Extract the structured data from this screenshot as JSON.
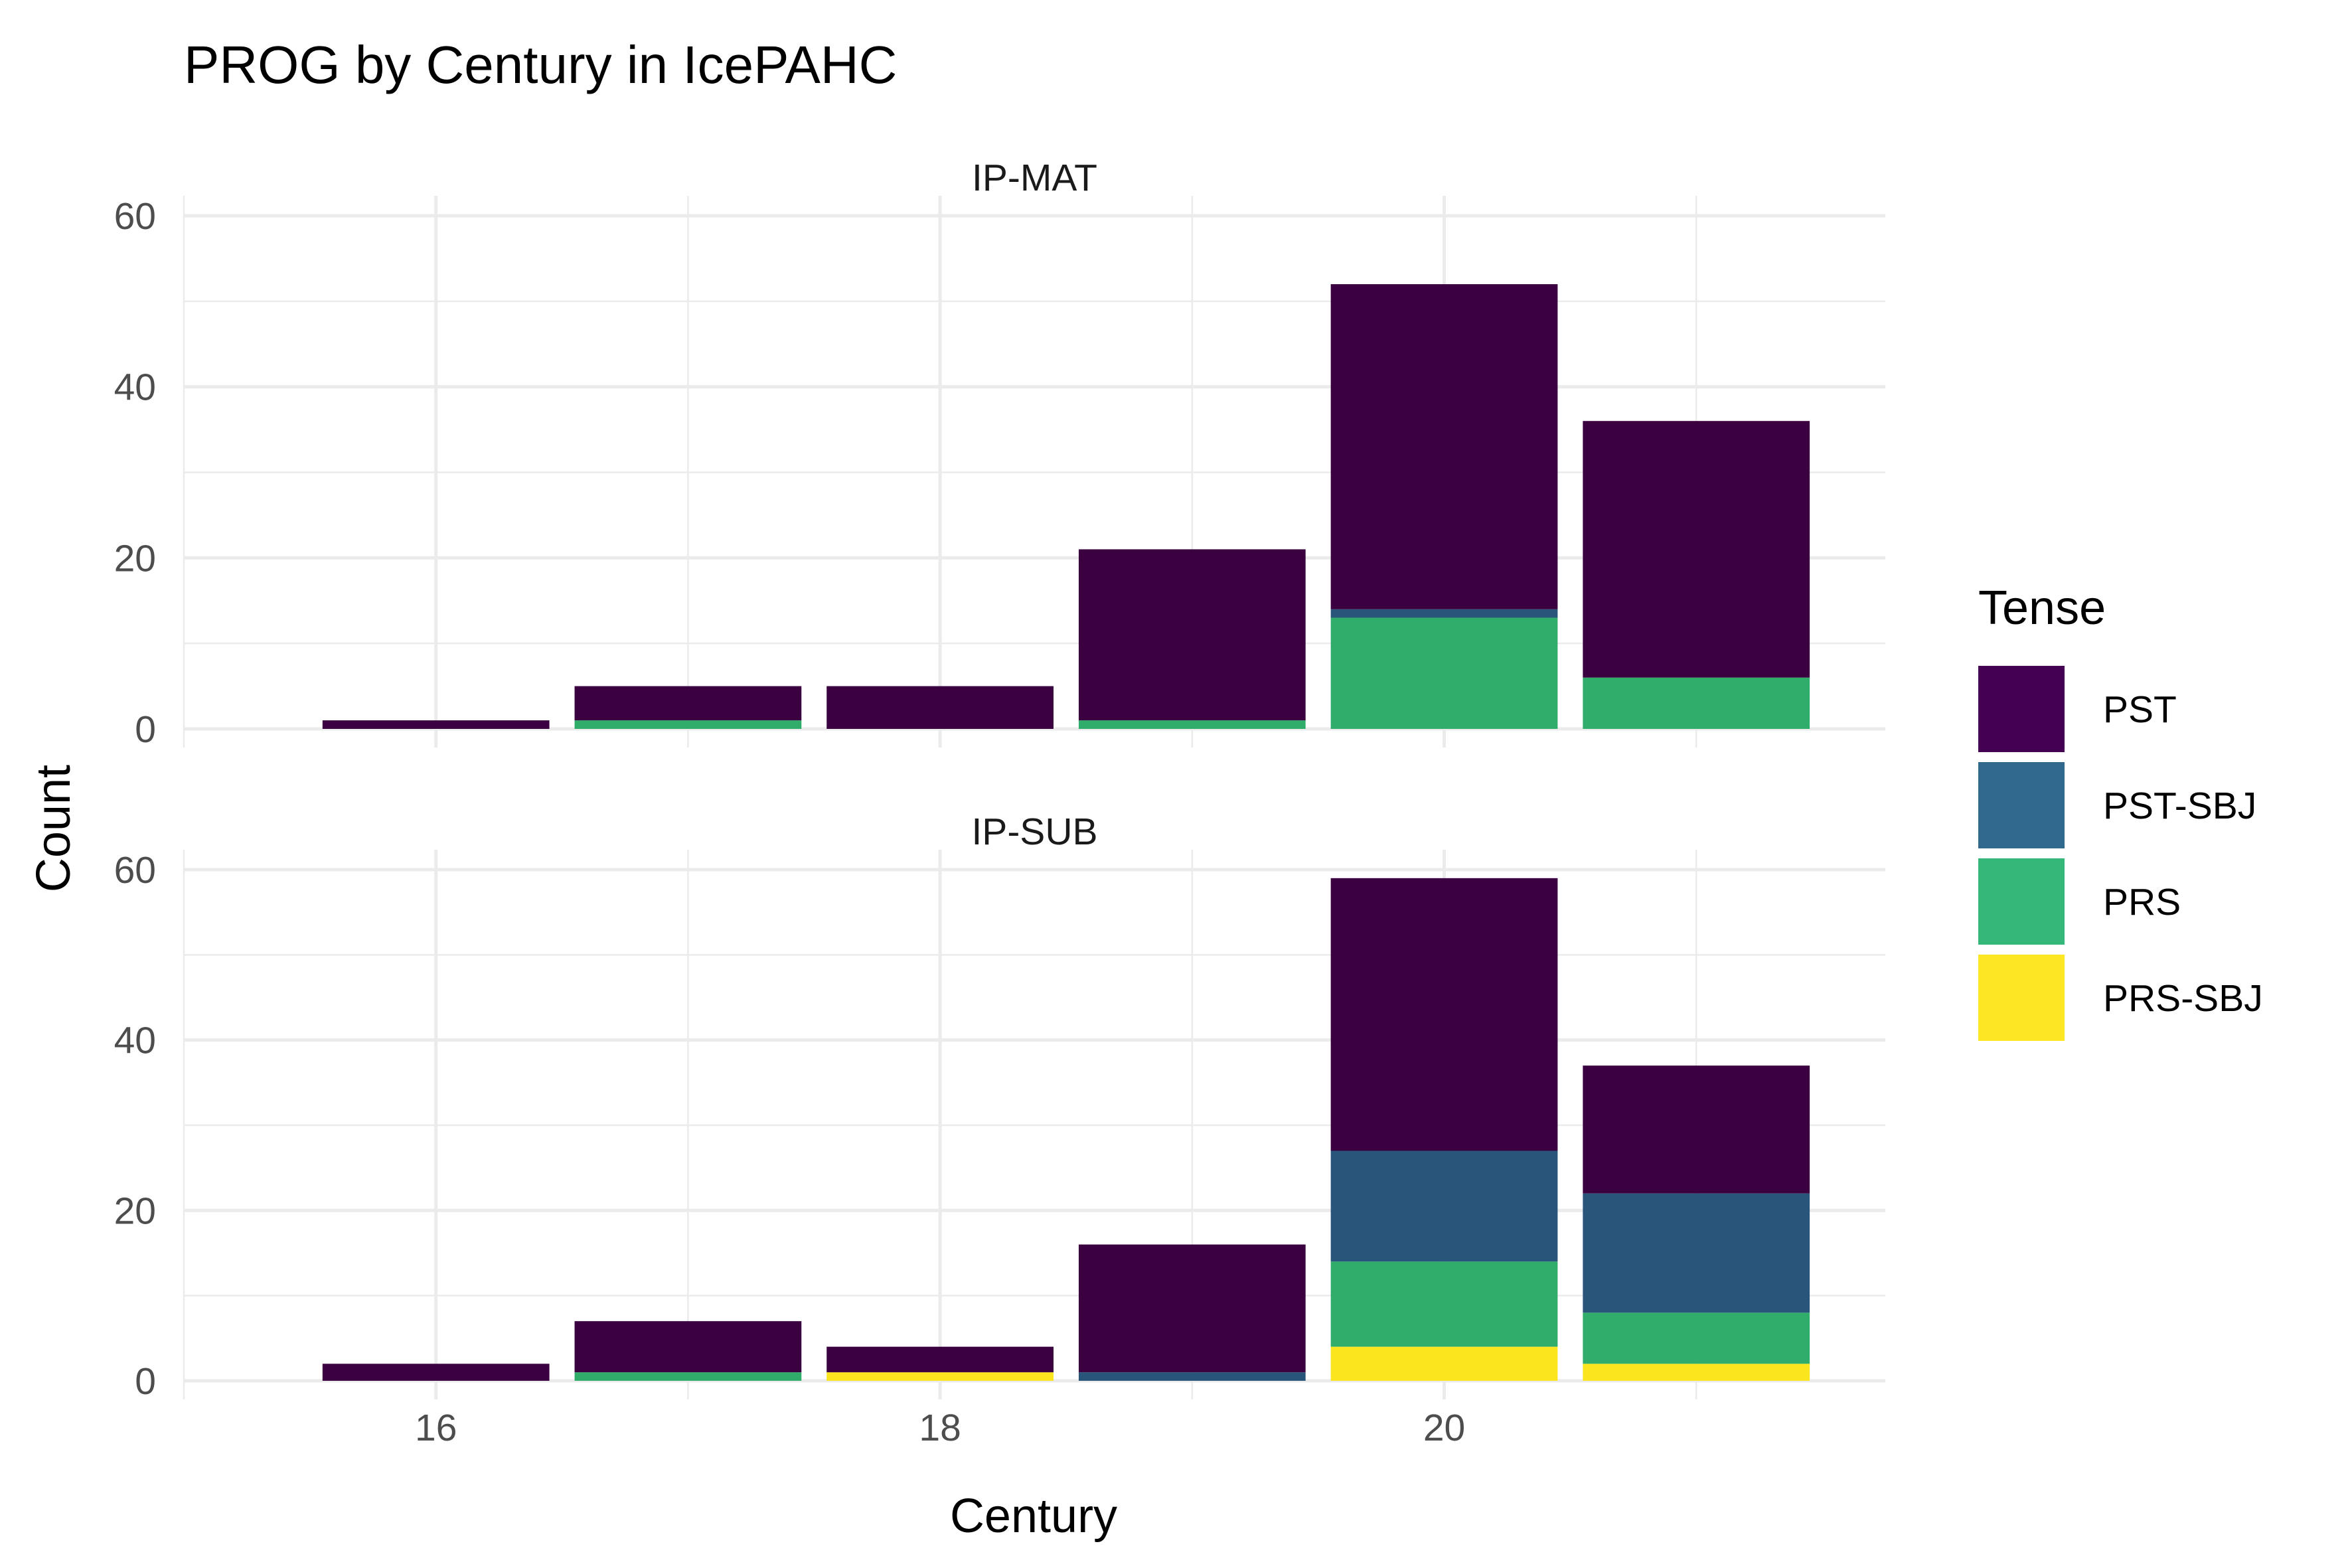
{
  "chart_data": {
    "type": "bar",
    "stacked": true,
    "title": "PROG by Century in IcePAHC",
    "xlabel": "Century",
    "ylabel": "Count",
    "legend_title": "Tense",
    "legend_position": "right",
    "grid": true,
    "x": [
      16,
      17,
      18,
      19,
      20,
      21
    ],
    "xlim": [
      15,
      21.75
    ],
    "x_ticks": [
      16,
      18,
      20
    ],
    "ylim": [
      0,
      60
    ],
    "y_ticks": [
      0,
      20,
      40,
      60
    ],
    "stack_order_bottom_to_top": [
      "PRS-SBJ",
      "PRS",
      "PST-SBJ",
      "PST"
    ],
    "legend_entries": [
      {
        "name": "PST",
        "color": "#440154"
      },
      {
        "name": "PST-SBJ",
        "color": "#31688e"
      },
      {
        "name": "PRS",
        "color": "#35b779"
      },
      {
        "name": "PRS-SBJ",
        "color": "#fde725"
      }
    ],
    "colors": {
      "PST": "#3b0040",
      "PST-SBJ": "#2a557a",
      "PRS": "#30ad6a",
      "PRS-SBJ": "#fbe51f"
    },
    "panels": [
      {
        "strip": "IP-MAT",
        "series": [
          {
            "name": "PST",
            "values": [
              1,
              4,
              5,
              20,
              38,
              30
            ]
          },
          {
            "name": "PST-SBJ",
            "values": [
              0,
              0,
              0,
              0,
              1,
              0
            ]
          },
          {
            "name": "PRS",
            "values": [
              0,
              1,
              0,
              1,
              13,
              6
            ]
          },
          {
            "name": "PRS-SBJ",
            "values": [
              0,
              0,
              0,
              0,
              0,
              0
            ]
          }
        ]
      },
      {
        "strip": "IP-SUB",
        "series": [
          {
            "name": "PST",
            "values": [
              2,
              6,
              3,
              15,
              32,
              15
            ]
          },
          {
            "name": "PST-SBJ",
            "values": [
              0,
              0,
              0,
              1,
              13,
              14
            ]
          },
          {
            "name": "PRS",
            "values": [
              0,
              1,
              0,
              0,
              10,
              6
            ]
          },
          {
            "name": "PRS-SBJ",
            "values": [
              0,
              0,
              1,
              0,
              4,
              2
            ]
          }
        ]
      }
    ]
  }
}
